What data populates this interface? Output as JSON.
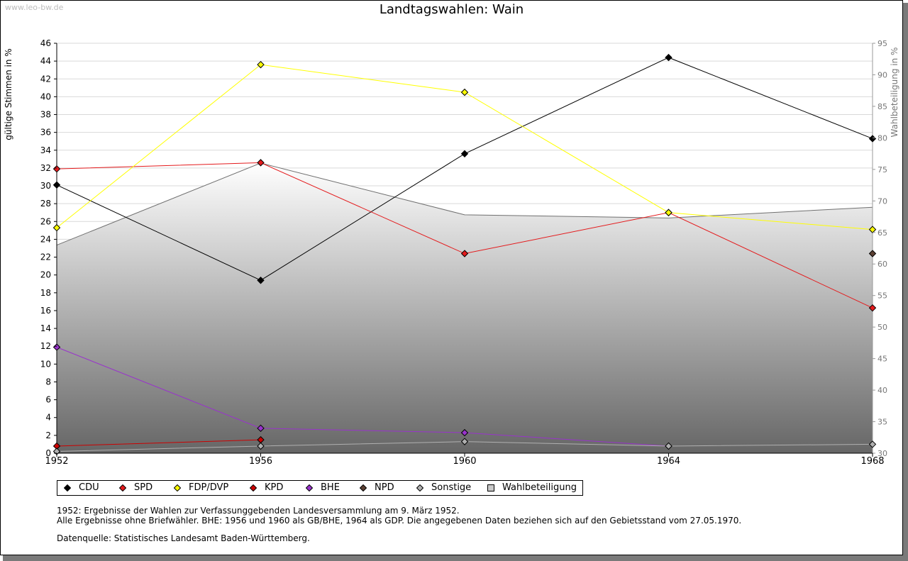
{
  "watermark": "www.leo-bw.de",
  "chart_data": {
    "type": "line",
    "title": "Landtagswahlen: Wain",
    "ylabel": "gültige Stimmen in %",
    "y2label": "Wahlbeteiligung in %",
    "x": [
      "1952",
      "1956",
      "1960",
      "1964",
      "1968"
    ],
    "ylim": [
      0,
      46
    ],
    "y_ticks": [
      0,
      2,
      4,
      6,
      8,
      10,
      12,
      14,
      16,
      18,
      20,
      22,
      24,
      26,
      28,
      30,
      32,
      34,
      36,
      38,
      40,
      42,
      44,
      46
    ],
    "y2lim": [
      30,
      95
    ],
    "y2_ticks": [
      30,
      35,
      40,
      45,
      50,
      55,
      60,
      65,
      70,
      75,
      80,
      85,
      90,
      95
    ],
    "grid": true,
    "legend_position": "bottom-left",
    "series": [
      {
        "name": "CDU",
        "color": "#000000",
        "values": [
          30.1,
          19.4,
          33.6,
          44.4,
          35.3
        ]
      },
      {
        "name": "SPD",
        "color": "#e41a1c",
        "values": [
          31.9,
          32.6,
          22.4,
          27.0,
          16.3
        ]
      },
      {
        "name": "FDP/DVP",
        "color": "#ffff00",
        "values": [
          25.3,
          43.6,
          40.5,
          27.0,
          25.1
        ]
      },
      {
        "name": "KPD",
        "color": "#cc0000",
        "values": [
          0.8,
          1.5,
          null,
          null,
          null
        ]
      },
      {
        "name": "BHE",
        "color": "#9933cc",
        "values": [
          11.9,
          2.8,
          2.3,
          0.8,
          null
        ]
      },
      {
        "name": "NPD",
        "color": "#5c4033",
        "values": [
          null,
          null,
          null,
          null,
          22.4
        ]
      },
      {
        "name": "Sonstige",
        "color": "#b0b0b0",
        "values": [
          0.2,
          0.8,
          1.3,
          0.8,
          1.0
        ]
      }
    ],
    "turnout": {
      "name": "Wahlbeteiligung",
      "color": "#707070",
      "values": [
        63.0,
        76.0,
        67.8,
        67.3,
        69.0
      ]
    }
  },
  "notes": [
    "1952: Ergebnisse der Wahlen zur Verfassunggebenden Landesversammlung am 9. März 1952.",
    "Alle Ergebnisse ohne Briefwähler. BHE: 1956 und 1960 als GB/BHE, 1964 als GDP. Die angegebenen Daten beziehen sich auf den Gebietsstand vom 27.05.1970.",
    "Datenquelle: Statistisches Landesamt Baden-Württemberg."
  ]
}
